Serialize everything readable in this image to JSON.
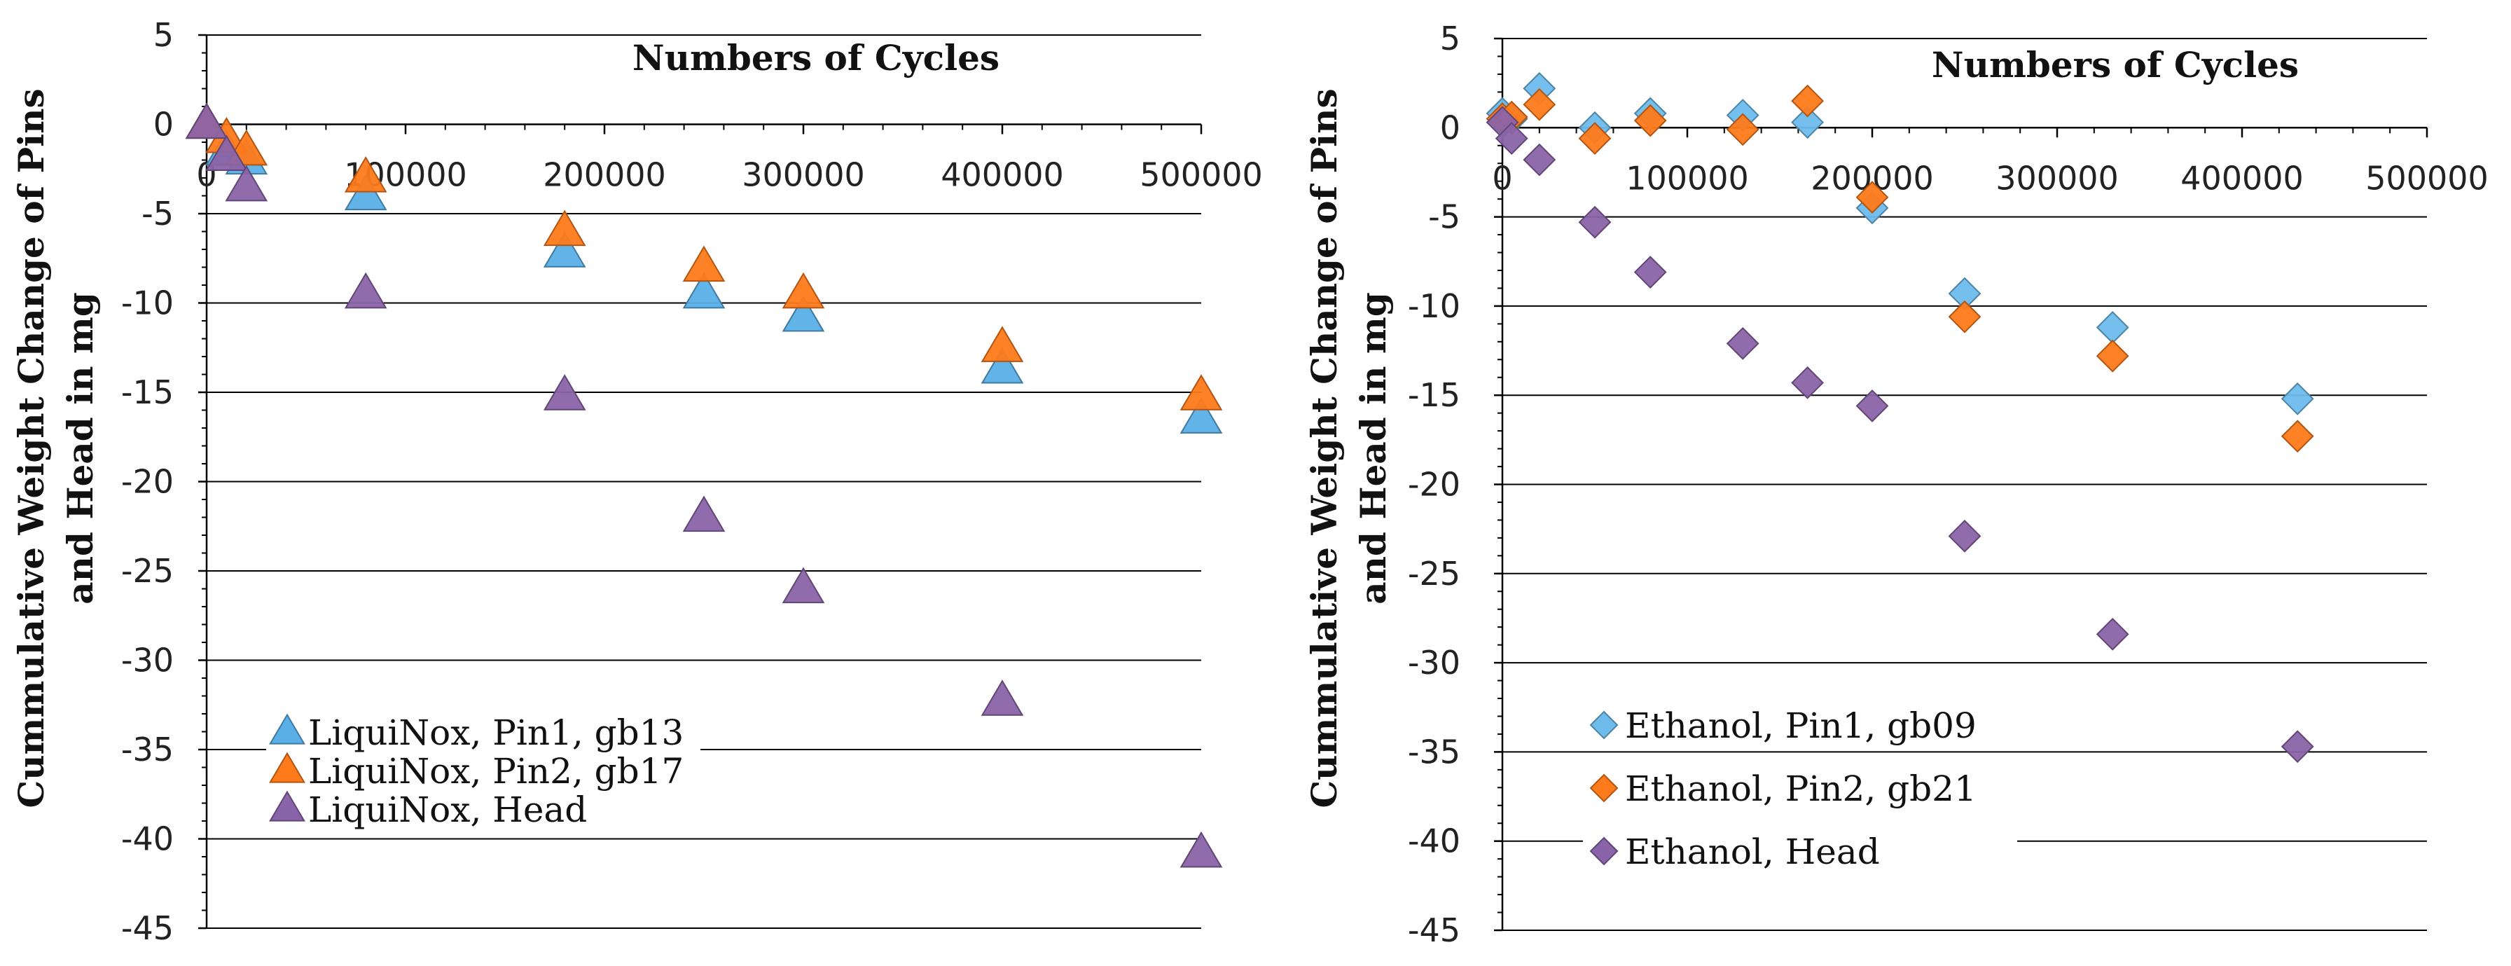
{
  "chart_data": [
    {
      "type": "scatter",
      "title": "",
      "xlabel": "Numbers of Cycles",
      "ylabel_lines": [
        "Cummulative Weight Change of Pins",
        "and Head in mg"
      ],
      "xlim": [
        0,
        500000
      ],
      "ylim": [
        -45,
        5
      ],
      "xticks": [
        "0",
        "100000",
        "200000",
        "300000",
        "400000",
        "500000"
      ],
      "yticks": [
        "5",
        "0",
        "-5",
        "-10",
        "-15",
        "-20",
        "-25",
        "-30",
        "-35",
        "-40",
        "-45"
      ],
      "grid": true,
      "marker": "triangle",
      "legend_position": "lower-left",
      "series": [
        {
          "name": "LiquiNox, Pin1, gb13",
          "color": "#5aafe6",
          "x": [
            0,
            10000,
            20000,
            80000,
            180000,
            250000,
            300000,
            400000,
            500000
          ],
          "y": [
            0,
            -1.5,
            -2,
            -4,
            -7.2,
            -9.5,
            -10.8,
            -13.7,
            -16.5
          ]
        },
        {
          "name": "LiquiNox, Pin2, gb17",
          "color": "#ff7a1a",
          "x": [
            0,
            10000,
            20000,
            80000,
            180000,
            250000,
            300000,
            400000,
            500000
          ],
          "y": [
            0,
            -0.8,
            -1.5,
            -3,
            -6,
            -8,
            -9.5,
            -12.5,
            -15.2
          ]
        },
        {
          "name": "LiquiNox, Head",
          "color": "#8a64a8",
          "x": [
            0,
            10000,
            20000,
            80000,
            180000,
            250000,
            300000,
            400000,
            500000
          ],
          "y": [
            0,
            -1.8,
            -3.5,
            -9.5,
            -15.2,
            -22,
            -26,
            -32.3,
            -40.8
          ]
        }
      ]
    },
    {
      "type": "scatter",
      "title": "",
      "xlabel": "Numbers of Cycles",
      "ylabel_lines": [
        "Cummulative Weight Change of Pins",
        "and Head in mg"
      ],
      "xlim": [
        0,
        500000
      ],
      "ylim": [
        -45,
        5
      ],
      "xticks": [
        "0",
        "100000",
        "200000",
        "300000",
        "400000",
        "500000"
      ],
      "yticks": [
        "5",
        "0",
        "-5",
        "-10",
        "-15",
        "-20",
        "-25",
        "-30",
        "-35",
        "-40",
        "-45"
      ],
      "grid": true,
      "marker": "diamond",
      "legend_position": "lower-left",
      "series": [
        {
          "name": "Ethanol, Pin1, gb09",
          "color": "#6dbcec",
          "x": [
            0,
            5000,
            20000,
            50000,
            80000,
            130000,
            165000,
            200000,
            250000,
            330000,
            430000
          ],
          "y": [
            0.8,
            0.5,
            2.2,
            0,
            0.8,
            0.7,
            0.3,
            -4.5,
            -9.3,
            -11.2,
            -15.2
          ]
        },
        {
          "name": "Ethanol, Pin2, gb21",
          "color": "#ff7a1a",
          "x": [
            0,
            5000,
            20000,
            50000,
            80000,
            130000,
            165000,
            200000,
            250000,
            330000,
            430000
          ],
          "y": [
            0.5,
            0.6,
            1.3,
            -0.6,
            0.4,
            -0.1,
            1.5,
            -3.9,
            -10.6,
            -12.8,
            -17.3
          ]
        },
        {
          "name": "Ethanol, Head",
          "color": "#8a64a8",
          "x": [
            0,
            5000,
            20000,
            50000,
            80000,
            130000,
            165000,
            200000,
            250000,
            330000,
            430000
          ],
          "y": [
            0.3,
            -0.6,
            -1.8,
            -5.3,
            -8.1,
            -12.1,
            -14.3,
            -15.6,
            -22.9,
            -28.4,
            -34.7
          ]
        }
      ]
    }
  ]
}
